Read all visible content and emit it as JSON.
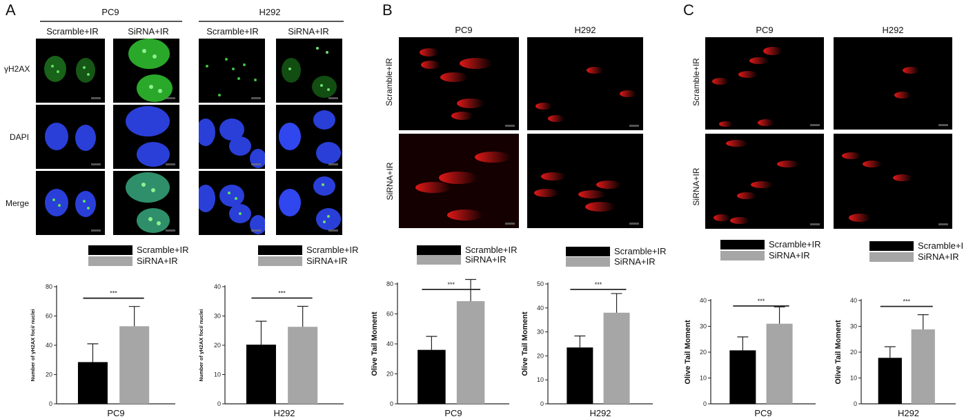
{
  "colors": {
    "scramble": "#000000",
    "sirna": "#a6a6a6",
    "gh2ax": "#3fc23f",
    "dapi": "#2b3fe0",
    "comet": "#d91a1a"
  },
  "panelA": {
    "letter": "A",
    "groups": [
      "PC9",
      "H292"
    ],
    "conditions": [
      "Scramble+IR",
      "SiRNA+IR",
      "Scramble+IR",
      "SiRNA+IR"
    ],
    "rows": [
      "γH2AX",
      "DAPI",
      "Merge"
    ]
  },
  "panelB": {
    "letter": "B",
    "columns": [
      "PC9",
      "H292"
    ],
    "rows": [
      "Scramble+IR",
      "SiRNA+IR"
    ]
  },
  "panelC": {
    "letter": "C",
    "columns": [
      "PC9",
      "H292"
    ],
    "rows": [
      "Scramble+IR",
      "SiRNA+IR"
    ]
  },
  "legend": {
    "items": [
      "Scramble+IR",
      "SiRNA+IR"
    ]
  },
  "chart_data": [
    {
      "id": "A-PC9",
      "type": "bar",
      "categories": [
        "PC9"
      ],
      "series": [
        {
          "name": "Scramble+IR",
          "values": [
            28.5
          ],
          "error": [
            12.5
          ]
        },
        {
          "name": "SiRNA+IR",
          "values": [
            53
          ],
          "error": [
            13.5
          ]
        }
      ],
      "xlabel": "PC9",
      "ylabel": "Number of γH2AX foci/ nuclei",
      "ylim": [
        0,
        80
      ],
      "yticks": [
        0,
        20,
        40,
        60,
        80
      ],
      "significance": "***"
    },
    {
      "id": "A-H292",
      "type": "bar",
      "categories": [
        "H292"
      ],
      "series": [
        {
          "name": "Scramble+IR",
          "values": [
            20.2
          ],
          "error": [
            8
          ]
        },
        {
          "name": "SiRNA+IR",
          "values": [
            26.3
          ],
          "error": [
            7
          ]
        }
      ],
      "xlabel": "H292",
      "ylabel": "Number of γH2AX foci/ nuclei",
      "ylim": [
        0,
        40
      ],
      "yticks": [
        0,
        10,
        20,
        30,
        40
      ],
      "significance": "***"
    },
    {
      "id": "B-PC9",
      "type": "bar",
      "categories": [
        "PC9"
      ],
      "series": [
        {
          "name": "Scramble+IR",
          "values": [
            36
          ],
          "error": [
            9
          ]
        },
        {
          "name": "SiRNA+IR",
          "values": [
            68.5
          ],
          "error": [
            14.5
          ]
        }
      ],
      "xlabel": "PC9",
      "ylabel": "Olive Tail Moment",
      "ylim": [
        0,
        80
      ],
      "yticks": [
        0,
        20,
        40,
        60,
        80
      ],
      "significance": "***"
    },
    {
      "id": "B-H292",
      "type": "bar",
      "categories": [
        "H292"
      ],
      "series": [
        {
          "name": "Scramble+IR",
          "values": [
            23.5
          ],
          "error": [
            4.8
          ]
        },
        {
          "name": "SiRNA+IR",
          "values": [
            38
          ],
          "error": [
            8
          ]
        }
      ],
      "xlabel": "H292",
      "ylabel": "Olive Tail Moment",
      "ylim": [
        0,
        50
      ],
      "yticks": [
        0,
        10,
        20,
        30,
        40,
        50
      ],
      "significance": "***"
    },
    {
      "id": "C-PC9",
      "type": "bar",
      "categories": [
        "PC9"
      ],
      "series": [
        {
          "name": "Scramble+IR",
          "values": [
            20.7
          ],
          "error": [
            5.2
          ]
        },
        {
          "name": "SiRNA+IR",
          "values": [
            31
          ],
          "error": [
            6.5
          ]
        }
      ],
      "xlabel": "PC9",
      "ylabel": "Olive Tail Moment",
      "ylim": [
        0,
        40
      ],
      "yticks": [
        0,
        10,
        20,
        30,
        40
      ],
      "significance": "***"
    },
    {
      "id": "C-H292",
      "type": "bar",
      "categories": [
        "H292"
      ],
      "series": [
        {
          "name": "Scramble+IR",
          "values": [
            17.8
          ],
          "error": [
            4.3
          ]
        },
        {
          "name": "SiRNA+IR",
          "values": [
            28.8
          ],
          "error": [
            5.7
          ]
        }
      ],
      "xlabel": "H292",
      "ylabel": "Olive Tail Moment",
      "ylim": [
        0,
        40
      ],
      "yticks": [
        0,
        10,
        20,
        30,
        40
      ],
      "significance": "***"
    }
  ]
}
